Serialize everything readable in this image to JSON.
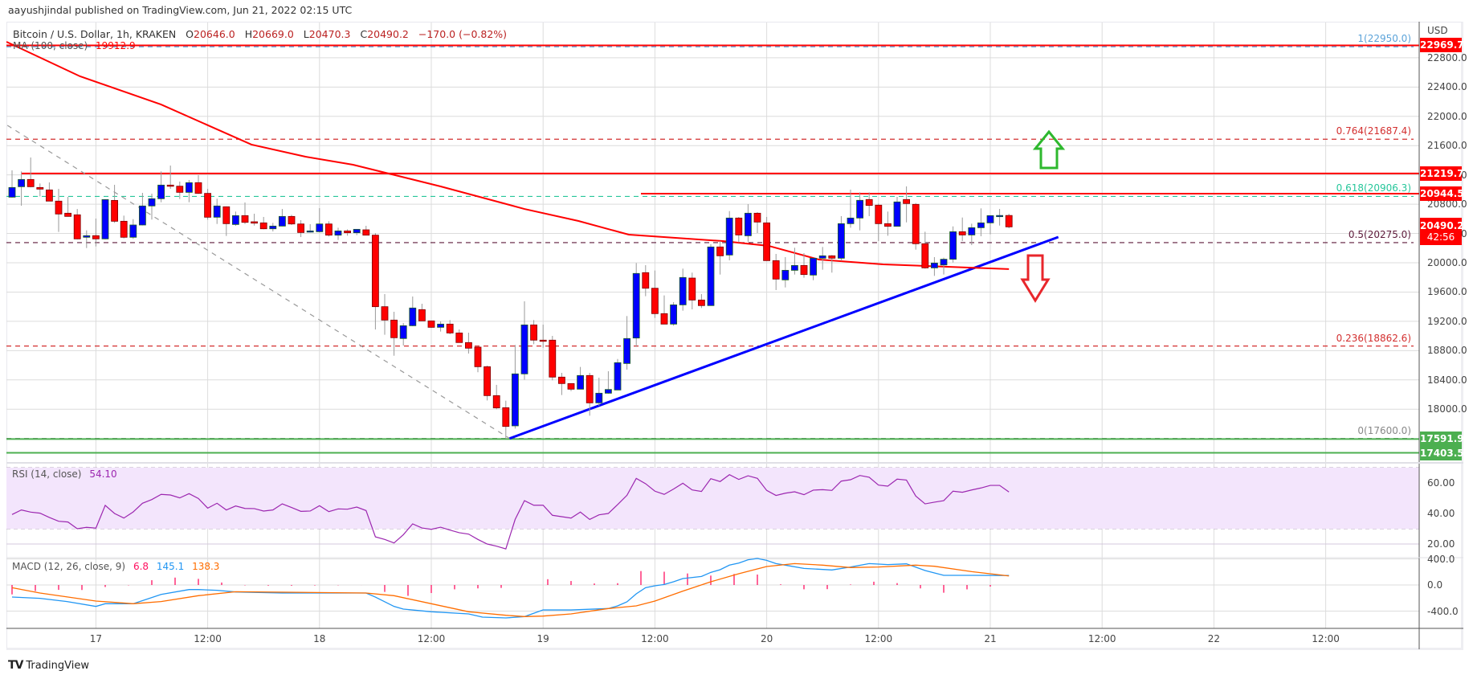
{
  "publish_line": "aayushjindal published on TradingView.com, Jun 21, 2022 02:15 UTC",
  "legend": {
    "symbol": "Bitcoin / U.S. Dollar, 1h, KRAKEN",
    "o_label": "O",
    "o_value": "20646.0",
    "h_label": "H",
    "h_value": "20669.0",
    "l_label": "L",
    "l_value": "20470.3",
    "c_label": "C",
    "c_value": "20490.2",
    "change": "−170.0 (−0.82%)"
  },
  "ma_legend": {
    "label": "MA (100, close)",
    "value": "19912.9"
  },
  "rsi_legend": {
    "label": "RSI (14, close)",
    "value": "54.10"
  },
  "macd_legend": {
    "label": "MACD (12, 26, close, 9)",
    "hist": "6.8",
    "macd": "145.1",
    "signal": "138.3"
  },
  "price_axis": {
    "currency": "USD",
    "ticks": [
      "22800.0",
      "22400.0",
      "22000.0",
      "21600.0",
      "21200.0",
      "20800.0",
      "20400.0",
      "20000.0",
      "19600.0",
      "19200.0",
      "18800.0",
      "18400.0",
      "18000.0"
    ],
    "tags": [
      {
        "text": "22969.7",
        "color": "#ff0000"
      },
      {
        "text": "21219.7",
        "color": "#ff0000"
      },
      {
        "text": "20944.5",
        "color": "#ff0000"
      },
      {
        "text": "17591.9",
        "color": "#4caf50"
      },
      {
        "text": "17403.5",
        "color": "#4caf50"
      }
    ],
    "last_price": "20490.2",
    "countdown": "42:56"
  },
  "rsi_axis": {
    "ticks": [
      "60.00",
      "40.00",
      "20.00"
    ]
  },
  "macd_axis": {
    "ticks": [
      "400.0",
      "0.0",
      "-400.0"
    ]
  },
  "time_axis": {
    "labels": [
      "17",
      "12:00",
      "18",
      "12:00",
      "19",
      "12:00",
      "20",
      "12:00",
      "21",
      "12:00",
      "22",
      "12:00"
    ]
  },
  "fib_levels": [
    {
      "text": "1(22950.0)",
      "price": 22950,
      "color": "#5ba3d9"
    },
    {
      "text": "0.764(21687.4)",
      "price": 21687.4,
      "color": "#d32f2f"
    },
    {
      "text": "0.618(20906.3)",
      "price": 20906.3,
      "color": "#26c69a"
    },
    {
      "text": "0.5(20275.0)",
      "price": 20275,
      "color": "#5d1a3a"
    },
    {
      "text": "0.236(18862.6)",
      "price": 18862.6,
      "color": "#d32f2f"
    },
    {
      "text": "0(17600.0)",
      "price": 17600,
      "color": "#888888"
    }
  ],
  "logo_text": "TradingView",
  "colors": {
    "up": "#0000ff",
    "down": "#ff0000",
    "ma": "#ff0000",
    "trendline": "#0000ff",
    "rsi": "#9c27b0",
    "macd": "#2196f3",
    "signal": "#ff6d00",
    "hist": "#ff1060"
  },
  "chart_data": {
    "type": "candlestick",
    "title": "Bitcoin / U.S. Dollar, 1h, KRAKEN",
    "x_ticks": [
      "17",
      "12:00",
      "18",
      "12:00",
      "19",
      "12:00",
      "20",
      "12:00",
      "21",
      "12:00",
      "22",
      "12:00"
    ],
    "ylim": [
      17300,
      23050
    ],
    "grid": true,
    "candles_ohlc": [
      [
        20896,
        21262,
        20889,
        21028
      ],
      [
        21039,
        21248,
        20779,
        21138
      ],
      [
        21138,
        21438,
        21030,
        21039
      ],
      [
        21028,
        21083,
        20907,
        21006
      ],
      [
        20995,
        21098,
        20840,
        20842
      ],
      [
        20842,
        21010,
        20421,
        20666
      ],
      [
        20677,
        20900,
        20630,
        20633
      ],
      [
        20655,
        20735,
        20320,
        20326
      ],
      [
        20348,
        20443,
        20201,
        20370
      ],
      [
        20370,
        20604,
        20223,
        20326
      ],
      [
        20326,
        20870,
        20320,
        20863
      ],
      [
        20852,
        21065,
        20545,
        20567
      ],
      [
        20567,
        20644,
        20333,
        20348
      ],
      [
        20348,
        20596,
        20326,
        20516
      ],
      [
        20516,
        20955,
        20510,
        20776
      ],
      [
        20776,
        20944,
        20590,
        20875
      ],
      [
        20875,
        21248,
        20827,
        21061
      ],
      [
        21061,
        21328,
        21010,
        21046
      ],
      [
        21046,
        21109,
        20871,
        20962
      ],
      [
        20962,
        21131,
        20827,
        21094
      ],
      [
        21094,
        21196,
        20940,
        20948
      ],
      [
        20948,
        21010,
        20589,
        20622
      ],
      [
        20622,
        20875,
        20530,
        20776
      ],
      [
        20765,
        20770,
        20366,
        20534
      ],
      [
        20523,
        20699,
        20505,
        20644
      ],
      [
        20644,
        20823,
        20530,
        20552
      ],
      [
        20560,
        20670,
        20508,
        20541
      ],
      [
        20545,
        20626,
        20457,
        20464
      ],
      [
        20464,
        20545,
        20428,
        20501
      ],
      [
        20501,
        20735,
        20497,
        20633
      ],
      [
        20633,
        20655,
        20516,
        20530
      ],
      [
        20530,
        20582,
        20351,
        20413
      ],
      [
        20424,
        20527,
        20413,
        20435
      ],
      [
        20424,
        20746,
        20413,
        20530
      ],
      [
        20530,
        20567,
        20359,
        20377
      ],
      [
        20377,
        20479,
        20311,
        20435
      ],
      [
        20435,
        20457,
        20370,
        20410
      ],
      [
        20410,
        20457,
        20377,
        20457
      ],
      [
        20450,
        20505,
        20377,
        20377
      ],
      [
        20377,
        20406,
        19089,
        19400
      ],
      [
        19400,
        19572,
        19016,
        19217
      ],
      [
        19217,
        19330,
        18730,
        18976
      ],
      [
        18965,
        19177,
        18869,
        19140
      ],
      [
        19140,
        19539,
        19133,
        19382
      ],
      [
        19360,
        19440,
        19206,
        19206
      ],
      [
        19206,
        19210,
        19110,
        19118
      ],
      [
        19118,
        19199,
        19060,
        19162
      ],
      [
        19162,
        19217,
        19023,
        19041
      ],
      [
        19041,
        19089,
        18910,
        18910
      ],
      [
        18910,
        19045,
        18760,
        18833
      ],
      [
        18848,
        18848,
        18504,
        18580
      ],
      [
        18580,
        18595,
        18119,
        18185
      ],
      [
        18185,
        18332,
        17999,
        18017
      ],
      [
        18020,
        18116,
        17596,
        17764
      ],
      [
        17772,
        18877,
        17735,
        18482
      ],
      [
        18482,
        19473,
        18401,
        19151
      ],
      [
        19151,
        19217,
        18888,
        18943
      ],
      [
        18943,
        19155,
        18840,
        18940
      ],
      [
        18943,
        19001,
        18394,
        18438
      ],
      [
        18438,
        18496,
        18193,
        18350
      ],
      [
        18350,
        18350,
        18247,
        18273
      ],
      [
        18273,
        18577,
        18273,
        18460
      ],
      [
        18460,
        18496,
        17911,
        18086
      ],
      [
        18086,
        18430,
        18046,
        18218
      ],
      [
        18218,
        18518,
        18211,
        18269
      ],
      [
        18262,
        18686,
        18262,
        18635
      ],
      [
        18624,
        19272,
        18540,
        18965
      ],
      [
        18972,
        19996,
        18851,
        19854
      ],
      [
        19865,
        19967,
        19543,
        19652
      ],
      [
        19652,
        19894,
        19246,
        19305
      ],
      [
        19305,
        19554,
        19162,
        19162
      ],
      [
        19162,
        19462,
        19140,
        19425
      ],
      [
        19425,
        19920,
        19345,
        19799
      ],
      [
        19791,
        19865,
        19363,
        19491
      ],
      [
        19491,
        19572,
        19382,
        19415
      ],
      [
        19415,
        20252,
        19415,
        20216
      ],
      [
        20216,
        20296,
        19839,
        20095
      ],
      [
        20106,
        20706,
        20033,
        20611
      ],
      [
        20611,
        20626,
        20278,
        20380
      ],
      [
        20369,
        20801,
        20285,
        20677
      ],
      [
        20677,
        20691,
        20406,
        20556
      ],
      [
        20545,
        20626,
        20029,
        20029
      ],
      [
        20029,
        20121,
        19627,
        19777
      ],
      [
        19766,
        20077,
        19663,
        19897
      ],
      [
        19897,
        20205,
        19839,
        19963
      ],
      [
        19963,
        20132,
        19795,
        19839
      ],
      [
        19832,
        20062,
        19762,
        20062
      ],
      [
        20062,
        20216,
        19905,
        20095
      ],
      [
        20095,
        20106,
        19865,
        20062
      ],
      [
        20062,
        20637,
        20026,
        20534
      ],
      [
        20534,
        20999,
        20479,
        20611
      ],
      [
        20611,
        20962,
        20443,
        20853
      ],
      [
        20864,
        20962,
        20637,
        20783
      ],
      [
        20787,
        20808,
        20296,
        20534
      ],
      [
        20534,
        20699,
        20369,
        20498
      ],
      [
        20498,
        20900,
        20498,
        20831
      ],
      [
        20864,
        21043,
        20552,
        20809
      ],
      [
        20798,
        20816,
        20179,
        20260
      ],
      [
        20260,
        20424,
        19919,
        19930
      ],
      [
        19930,
        20077,
        19821,
        19996
      ],
      [
        19970,
        20070,
        19839,
        20048
      ],
      [
        20048,
        20497,
        20004,
        20424
      ],
      [
        20424,
        20618,
        20296,
        20380
      ],
      [
        20380,
        20534,
        20241,
        20479
      ],
      [
        20479,
        20743,
        20362,
        20545
      ],
      [
        20545,
        20644,
        20388,
        20644
      ],
      [
        20644,
        20735,
        20508,
        20646
      ],
      [
        20646,
        20669,
        20470.3,
        20490.2
      ]
    ],
    "ma100_points": [
      [
        0.4,
        23019
      ],
      [
        8.3,
        22547
      ],
      [
        17,
        22162
      ],
      [
        26.7,
        21614
      ],
      [
        32.5,
        21449
      ],
      [
        37.6,
        21339
      ],
      [
        47,
        21043
      ],
      [
        56,
        20735
      ],
      [
        61.8,
        20571
      ],
      [
        67.2,
        20384
      ],
      [
        77.3,
        20296
      ],
      [
        82.2,
        20231
      ],
      [
        87.6,
        20044
      ],
      [
        94.5,
        19978
      ],
      [
        108,
        19912.9
      ]
    ],
    "horizontal_lines": [
      {
        "price": 22969.7,
        "color": "#ff0000",
        "from_bar": 0
      },
      {
        "price": 21219.7,
        "color": "#ff0000",
        "from_bar": 2
      },
      {
        "price": 20944.5,
        "color": "#ff0000",
        "from_bar": 68.5
      },
      {
        "price": 17591.9,
        "color": "#4caf50",
        "from_bar": 0
      },
      {
        "price": 17403.5,
        "color": "#4caf50",
        "from_bar": 0
      }
    ],
    "fib_trend": [
      [
        0.5,
        21877
      ],
      [
        54.4,
        17600
      ]
    ],
    "support_trendline": [
      [
        54.4,
        17600
      ],
      [
        113.3,
        20351
      ]
    ],
    "rsi": {
      "ylim": [
        10,
        80
      ],
      "bands": [
        30,
        70
      ],
      "values": [
        39.3,
        42.3,
        40.9,
        40.2,
        37.4,
        34.9,
        34.4,
        30,
        30.9,
        30.4,
        45.3,
        40,
        37,
        41,
        46.7,
        49.1,
        52.5,
        52.1,
        50.2,
        53,
        49.8,
        43.5,
        46.7,
        42.3,
        44.9,
        43.3,
        43.2,
        41.6,
        42.3,
        46.3,
        43.9,
        41.4,
        41.6,
        45.1,
        41.2,
        43,
        42.8,
        44.2,
        41.9,
        24.7,
        23,
        20.7,
        26.1,
        33.2,
        30.5,
        29.6,
        31,
        29.1,
        27.4,
        26.5,
        23,
        20,
        18.6,
        16.8,
        36.1,
        48.4,
        45.4,
        45.4,
        38.8,
        37.9,
        37,
        40.9,
        36.1,
        39.1,
        40,
        45.8,
        51.9,
        63,
        59.5,
        54.6,
        52.5,
        56,
        59.8,
        55.4,
        54.4,
        62.8,
        60.9,
        65.4,
        62.3,
        64.7,
        63,
        55.1,
        51.8,
        53.3,
        54.2,
        52.3,
        55.3,
        55.6,
        55.1,
        61.2,
        62.1,
        64.9,
        63.7,
        58.6,
        57.9,
        62.5,
        61.9,
        51.4,
        46.3,
        47.4,
        48.4,
        54.6,
        53.9,
        55.4,
        56.7,
        58.4,
        58.4,
        54.1
      ]
    },
    "macd": {
      "macd_points": [
        [
          1,
          -185
        ],
        [
          4,
          -205
        ],
        [
          6.9,
          -254
        ],
        [
          10,
          -328
        ],
        [
          11,
          -287
        ],
        [
          14,
          -287
        ],
        [
          17,
          -144
        ],
        [
          20,
          -70
        ],
        [
          21,
          -70
        ],
        [
          23,
          -82
        ],
        [
          25,
          -107
        ],
        [
          30,
          -123
        ],
        [
          39,
          -123
        ],
        [
          40,
          -185
        ],
        [
          42,
          -328
        ],
        [
          43,
          -369
        ],
        [
          46,
          -410
        ],
        [
          50,
          -443
        ],
        [
          51.5,
          -492
        ],
        [
          54,
          -505
        ],
        [
          56,
          -484
        ],
        [
          58,
          -382
        ],
        [
          61,
          -382
        ],
        [
          65,
          -361
        ],
        [
          66,
          -320
        ],
        [
          67,
          -258
        ],
        [
          68,
          -135
        ],
        [
          69,
          -41
        ],
        [
          70,
          -12
        ],
        [
          71,
          8
        ],
        [
          72,
          49
        ],
        [
          73,
          98
        ],
        [
          75,
          131
        ],
        [
          76,
          193
        ],
        [
          77,
          234
        ],
        [
          78,
          304
        ],
        [
          79,
          336
        ],
        [
          80,
          386
        ],
        [
          81,
          406
        ],
        [
          82,
          377
        ],
        [
          83,
          328
        ],
        [
          84,
          304
        ],
        [
          86,
          254
        ],
        [
          89,
          230
        ],
        [
          91,
          275
        ],
        [
          93,
          328
        ],
        [
          95,
          312
        ],
        [
          97,
          324
        ],
        [
          99,
          222
        ],
        [
          101,
          148
        ],
        [
          104,
          148
        ],
        [
          108,
          145.1
        ]
      ],
      "signal_points": [
        [
          1,
          -41
        ],
        [
          4,
          -123
        ],
        [
          10,
          -246
        ],
        [
          14,
          -287
        ],
        [
          17,
          -254
        ],
        [
          21,
          -164
        ],
        [
          25,
          -103
        ],
        [
          39,
          -123
        ],
        [
          42,
          -164
        ],
        [
          46,
          -287
        ],
        [
          50,
          -410
        ],
        [
          54,
          -464
        ],
        [
          56,
          -484
        ],
        [
          58,
          -476
        ],
        [
          61,
          -443
        ],
        [
          65,
          -361
        ],
        [
          68,
          -320
        ],
        [
          70,
          -246
        ],
        [
          73,
          -94
        ],
        [
          76,
          49
        ],
        [
          79,
          172
        ],
        [
          82,
          283
        ],
        [
          85,
          328
        ],
        [
          88,
          304
        ],
        [
          91,
          267
        ],
        [
          94,
          275
        ],
        [
          98,
          304
        ],
        [
          100,
          287
        ],
        [
          104,
          205
        ],
        [
          108,
          138.3
        ]
      ]
    }
  }
}
